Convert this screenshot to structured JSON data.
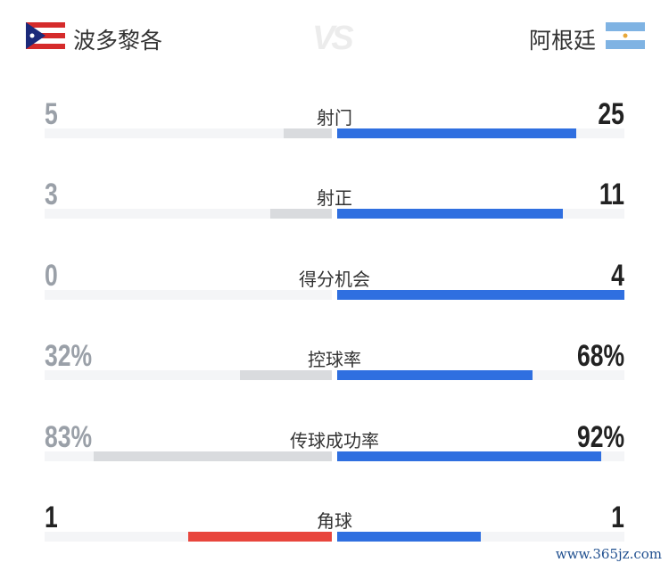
{
  "header": {
    "home_team": "波多黎各",
    "away_team": "阿根廷",
    "vs_label": "VS",
    "home_flag_icon": "puerto-rico-flag",
    "away_flag_icon": "argentina-flag"
  },
  "colors": {
    "away_bar": "#2f6fe0",
    "home_bar_lower": "#d9dbde",
    "home_bar_equal": "#e8453c",
    "leading_text": "#222222",
    "trailing_text": "#9aa0a8",
    "track": "#f4f5f7"
  },
  "stats": [
    {
      "label": "射门",
      "home": "5",
      "away": "25",
      "home_fill": 0.167,
      "away_fill": 0.833,
      "home_color": "#d9dbde",
      "home_text": "#9aa0a8",
      "away_text": "#222222"
    },
    {
      "label": "射正",
      "home": "3",
      "away": "11",
      "home_fill": 0.214,
      "away_fill": 0.786,
      "home_color": "#d9dbde",
      "home_text": "#9aa0a8",
      "away_text": "#222222"
    },
    {
      "label": "得分机会",
      "home": "0",
      "away": "4",
      "home_fill": 0,
      "away_fill": 1,
      "home_color": "#d9dbde",
      "home_text": "#9aa0a8",
      "away_text": "#222222"
    },
    {
      "label": "控球率",
      "home": "32%",
      "away": "68%",
      "home_fill": 0.32,
      "away_fill": 0.68,
      "home_color": "#d9dbde",
      "home_text": "#9aa0a8",
      "away_text": "#222222"
    },
    {
      "label": "传球成功率",
      "home": "83%",
      "away": "92%",
      "home_fill": 0.83,
      "away_fill": 0.92,
      "home_color": "#d9dbde",
      "home_text": "#9aa0a8",
      "away_text": "#222222"
    },
    {
      "label": "角球",
      "home": "1",
      "away": "1",
      "home_fill": 0.5,
      "away_fill": 0.5,
      "home_color": "#e8453c",
      "home_text": "#222222",
      "away_text": "#222222"
    }
  ],
  "watermark": "www.365jz.com"
}
